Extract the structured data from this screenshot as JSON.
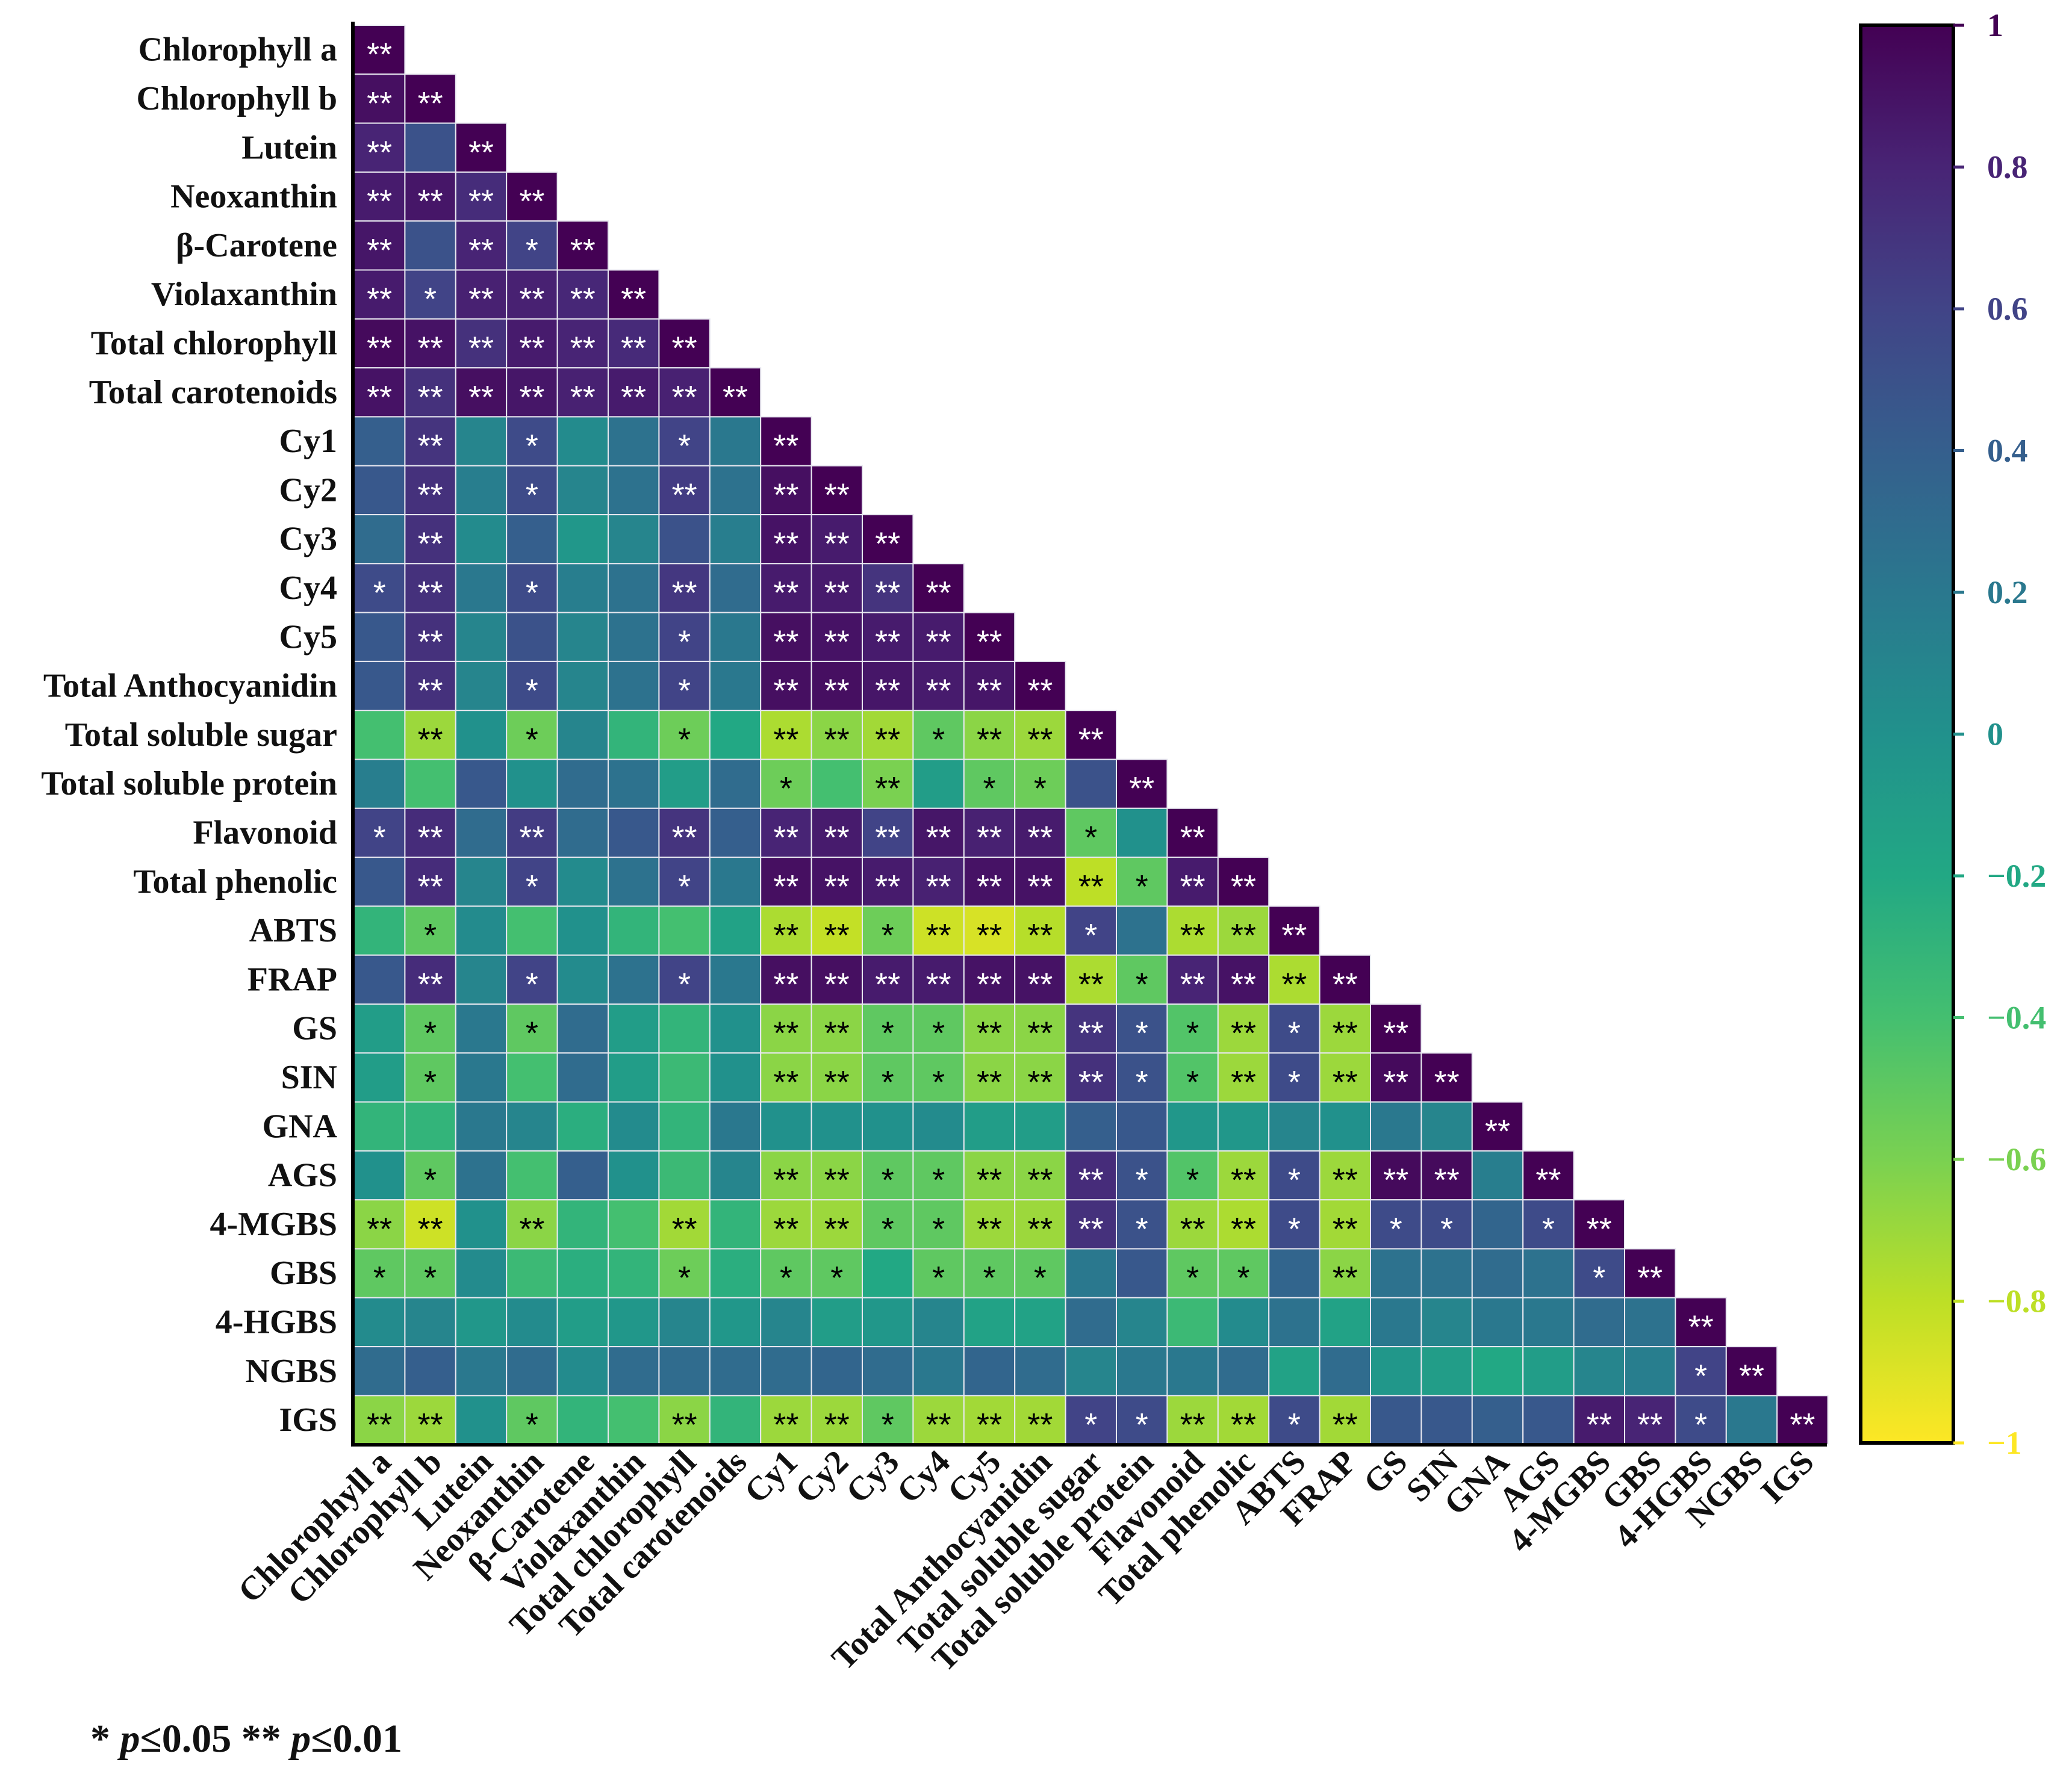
{
  "chart_data": {
    "type": "heatmap",
    "title": "",
    "variables": [
      "Chlorophyll a",
      "Chlorophyll b",
      "Lutein",
      "Neoxanthin",
      "β-Carotene",
      "Violaxanthin",
      "Total chlorophyll",
      "Total carotenoids",
      "Cy1",
      "Cy2",
      "Cy3",
      "Cy4",
      "Cy5",
      "Total Anthocyanidin",
      "Total soluble sugar",
      "Total soluble protein",
      "Flavonoid",
      "Total phenolic",
      "ABTS",
      "FRAP",
      "GS",
      "SIN",
      "GNA",
      "AGS",
      "4-MGBS",
      "GBS",
      "4-HGBS",
      "NGBS",
      "IGS"
    ],
    "layout": "lower-triangle",
    "values": [
      [
        1
      ],
      [
        0.92,
        1
      ],
      [
        0.8,
        0.5,
        1
      ],
      [
        0.85,
        0.88,
        0.75,
        1
      ],
      [
        0.88,
        0.5,
        0.8,
        0.6,
        1
      ],
      [
        0.85,
        0.6,
        0.82,
        0.82,
        0.78,
        1
      ],
      [
        0.95,
        0.9,
        0.72,
        0.85,
        0.8,
        0.76,
        1
      ],
      [
        0.9,
        0.72,
        0.92,
        0.88,
        0.82,
        0.85,
        0.82,
        1
      ],
      [
        0.4,
        0.7,
        0.1,
        0.55,
        0.05,
        0.25,
        0.6,
        0.2,
        1
      ],
      [
        0.45,
        0.72,
        0.15,
        0.55,
        0.1,
        0.25,
        0.65,
        0.25,
        0.92,
        1
      ],
      [
        0.3,
        0.72,
        0.05,
        0.4,
        -0.05,
        0.1,
        0.5,
        0.15,
        0.9,
        0.85,
        1
      ],
      [
        0.55,
        0.72,
        0.2,
        0.55,
        0.15,
        0.25,
        0.68,
        0.3,
        0.85,
        0.85,
        0.7,
        1
      ],
      [
        0.45,
        0.72,
        0.1,
        0.5,
        0.1,
        0.25,
        0.6,
        0.2,
        0.92,
        0.9,
        0.85,
        0.85,
        1
      ],
      [
        0.45,
        0.72,
        0.1,
        0.55,
        0.1,
        0.25,
        0.6,
        0.2,
        0.92,
        0.92,
        0.88,
        0.85,
        0.88,
        1
      ],
      [
        -0.4,
        -0.7,
        0.0,
        -0.55,
        0.1,
        -0.3,
        -0.55,
        -0.2,
        -0.75,
        -0.65,
        -0.72,
        -0.5,
        -0.65,
        -0.7,
        1
      ],
      [
        0.15,
        -0.4,
        0.45,
        0.0,
        0.3,
        0.25,
        -0.1,
        0.3,
        -0.55,
        -0.4,
        -0.6,
        -0.1,
        -0.5,
        -0.55,
        0.5,
        1
      ],
      [
        0.6,
        0.75,
        0.3,
        0.65,
        0.3,
        0.45,
        0.7,
        0.4,
        0.8,
        0.85,
        0.6,
        0.88,
        0.82,
        0.85,
        -0.5,
        0.0,
        1
      ],
      [
        0.45,
        0.75,
        0.1,
        0.6,
        0.05,
        0.25,
        0.6,
        0.2,
        0.92,
        0.9,
        0.85,
        0.82,
        0.9,
        0.9,
        -0.8,
        -0.5,
        0.85,
        1
      ],
      [
        -0.3,
        -0.5,
        0.05,
        -0.4,
        0.0,
        -0.3,
        -0.4,
        -0.15,
        -0.75,
        -0.82,
        -0.55,
        -0.85,
        -0.88,
        -0.78,
        0.6,
        0.25,
        -0.75,
        -0.7,
        1
      ],
      [
        0.45,
        0.75,
        0.1,
        0.6,
        0.05,
        0.25,
        0.6,
        0.2,
        0.92,
        0.92,
        0.85,
        0.85,
        0.9,
        0.9,
        -0.75,
        -0.5,
        0.8,
        0.9,
        -0.75,
        1
      ],
      [
        -0.1,
        -0.5,
        0.2,
        -0.5,
        0.3,
        -0.1,
        -0.3,
        0.0,
        -0.65,
        -0.65,
        -0.5,
        -0.5,
        -0.65,
        -0.65,
        0.7,
        0.5,
        -0.45,
        -0.7,
        0.55,
        -0.7,
        1
      ],
      [
        -0.1,
        -0.5,
        0.2,
        -0.4,
        0.3,
        -0.1,
        -0.35,
        0.0,
        -0.65,
        -0.65,
        -0.5,
        -0.5,
        -0.65,
        -0.65,
        0.72,
        0.5,
        -0.45,
        -0.7,
        0.55,
        -0.7,
        0.95,
        1
      ],
      [
        -0.3,
        -0.3,
        0.2,
        0.1,
        -0.25,
        0.05,
        -0.3,
        0.2,
        0.0,
        0.0,
        0.0,
        0.05,
        -0.1,
        -0.1,
        0.4,
        0.45,
        -0.05,
        -0.05,
        0.1,
        0.0,
        0.2,
        0.1,
        1
      ],
      [
        0.0,
        -0.5,
        0.25,
        -0.4,
        0.4,
        0.0,
        -0.35,
        0.1,
        -0.65,
        -0.65,
        -0.5,
        -0.5,
        -0.65,
        -0.65,
        0.75,
        0.5,
        -0.45,
        -0.7,
        0.55,
        -0.7,
        0.95,
        0.95,
        0.15,
        1
      ],
      [
        -0.65,
        -0.85,
        0.0,
        -0.65,
        -0.3,
        -0.4,
        -0.72,
        -0.3,
        -0.7,
        -0.7,
        -0.5,
        -0.5,
        -0.7,
        -0.7,
        0.72,
        0.5,
        -0.7,
        -0.75,
        0.55,
        -0.72,
        0.55,
        0.55,
        0.35,
        0.55,
        1
      ],
      [
        -0.5,
        -0.5,
        0.05,
        -0.35,
        -0.25,
        -0.3,
        -0.55,
        -0.25,
        -0.5,
        -0.5,
        -0.2,
        -0.5,
        -0.5,
        -0.5,
        0.2,
        0.45,
        -0.5,
        -0.5,
        0.35,
        -0.65,
        0.25,
        0.25,
        0.3,
        0.25,
        0.55,
        1
      ],
      [
        0.05,
        0.1,
        -0.05,
        0.05,
        -0.1,
        -0.05,
        0.1,
        -0.05,
        0.1,
        -0.1,
        -0.05,
        0.1,
        -0.15,
        -0.15,
        0.3,
        0.1,
        -0.35,
        0.05,
        0.25,
        -0.15,
        0.2,
        0.1,
        0.2,
        0.2,
        0.3,
        0.25,
        1
      ],
      [
        0.3,
        0.4,
        0.2,
        0.3,
        0.05,
        0.3,
        0.3,
        0.3,
        0.3,
        0.35,
        0.3,
        0.2,
        0.35,
        0.3,
        0.1,
        0.2,
        0.2,
        0.3,
        -0.15,
        0.3,
        -0.05,
        -0.1,
        -0.2,
        -0.1,
        0.1,
        0.15,
        0.6,
        1
      ],
      [
        -0.65,
        -0.7,
        0.0,
        -0.5,
        -0.3,
        -0.4,
        -0.65,
        -0.3,
        -0.7,
        -0.7,
        -0.5,
        -0.7,
        -0.72,
        -0.72,
        0.6,
        0.55,
        -0.7,
        -0.72,
        0.55,
        -0.72,
        0.45,
        0.45,
        0.4,
        0.45,
        0.85,
        0.8,
        0.55,
        0.2,
        1
      ]
    ],
    "significance": [
      [
        "**"
      ],
      [
        "**",
        "**"
      ],
      [
        "**",
        "",
        "**"
      ],
      [
        "**",
        "**",
        "**",
        "**"
      ],
      [
        "**",
        "",
        "**",
        "*",
        "**"
      ],
      [
        "**",
        "*",
        "**",
        "**",
        "**",
        "**"
      ],
      [
        "**",
        "**",
        "**",
        "**",
        "**",
        "**",
        "**"
      ],
      [
        "**",
        "**",
        "**",
        "**",
        "**",
        "**",
        "**",
        "**"
      ],
      [
        "",
        "**",
        "",
        "*",
        "",
        "",
        "*",
        "",
        "**"
      ],
      [
        "",
        "**",
        "",
        "*",
        "",
        "",
        "**",
        "",
        "**",
        "**"
      ],
      [
        "",
        "**",
        "",
        "",
        "",
        "",
        "",
        "",
        "**",
        "**",
        "**"
      ],
      [
        "*",
        "**",
        "",
        "*",
        "",
        "",
        "**",
        "",
        "**",
        "**",
        "**",
        "**"
      ],
      [
        "",
        "**",
        "",
        "",
        "",
        "",
        "*",
        "",
        "**",
        "**",
        "**",
        "**",
        "**"
      ],
      [
        "",
        "**",
        "",
        "*",
        "",
        "",
        "*",
        "",
        "**",
        "**",
        "**",
        "**",
        "**",
        "**"
      ],
      [
        "",
        "**",
        "",
        "*",
        "",
        "",
        "*",
        "",
        "**",
        "**",
        "**",
        "*",
        "**",
        "**",
        "**"
      ],
      [
        "",
        "",
        "",
        "",
        "",
        "",
        "",
        "",
        "*",
        "",
        "**",
        "",
        "*",
        "*",
        "",
        "**"
      ],
      [
        "*",
        "**",
        "",
        "**",
        "",
        "",
        "**",
        "",
        "**",
        "**",
        "**",
        "**",
        "**",
        "**",
        "*",
        "",
        "**"
      ],
      [
        "",
        "**",
        "",
        "*",
        "",
        "",
        "*",
        "",
        "**",
        "**",
        "**",
        "**",
        "**",
        "**",
        "**",
        "*",
        "**",
        "**"
      ],
      [
        "",
        "*",
        "",
        "",
        "",
        "",
        "",
        "",
        "**",
        "**",
        "*",
        "**",
        "**",
        "**",
        "*",
        "",
        "**",
        "**",
        "**"
      ],
      [
        "",
        "**",
        "",
        "*",
        "",
        "",
        "*",
        "",
        "**",
        "**",
        "**",
        "**",
        "**",
        "**",
        "**",
        "*",
        "**",
        "**",
        "**",
        "**"
      ],
      [
        "",
        "*",
        "",
        "*",
        "",
        "",
        "",
        "",
        "**",
        "**",
        "*",
        "*",
        "**",
        "**",
        "**",
        "*",
        "*",
        "**",
        "*",
        "**",
        "**"
      ],
      [
        "",
        "*",
        "",
        "",
        "",
        "",
        "",
        "",
        "**",
        "**",
        "*",
        "*",
        "**",
        "**",
        "**",
        "*",
        "*",
        "**",
        "*",
        "**",
        "**",
        "**"
      ],
      [
        "",
        "",
        "",
        "",
        "",
        "",
        "",
        "",
        "",
        "",
        "",
        "",
        "",
        "",
        "",
        "",
        "",
        "",
        "",
        "",
        "",
        "",
        "**"
      ],
      [
        "",
        "*",
        "",
        "",
        "",
        "",
        "",
        "",
        "**",
        "**",
        "*",
        "*",
        "**",
        "**",
        "**",
        "*",
        "*",
        "**",
        "*",
        "**",
        "**",
        "**",
        "",
        "**"
      ],
      [
        "**",
        "**",
        "",
        "**",
        "",
        "",
        "**",
        "",
        "**",
        "**",
        "*",
        "*",
        "**",
        "**",
        "**",
        "*",
        "**",
        "**",
        "*",
        "**",
        "*",
        "*",
        "",
        "*",
        "**"
      ],
      [
        "*",
        "*",
        "",
        "",
        "",
        "",
        "*",
        "",
        "*",
        "*",
        "",
        "*",
        "*",
        "*",
        "",
        "",
        "*",
        "*",
        "",
        "**",
        "",
        "",
        "",
        "",
        "*",
        "**"
      ],
      [
        "",
        "",
        "",
        "",
        "",
        "",
        "",
        "",
        "",
        "",
        "",
        "",
        "",
        "",
        "",
        "",
        "",
        "",
        "",
        "",
        "",
        "",
        "",
        "",
        "",
        "",
        "**"
      ],
      [
        "",
        "",
        "",
        "",
        "",
        "",
        "",
        "",
        "",
        "",
        "",
        "",
        "",
        "",
        "",
        "",
        "",
        "",
        "",
        "",
        "",
        "",
        "",
        "",
        "",
        "",
        "*",
        "**"
      ],
      [
        "**",
        "**",
        "",
        "*",
        "",
        "",
        "**",
        "",
        "**",
        "**",
        "*",
        "**",
        "**",
        "**",
        "*",
        "*",
        "**",
        "**",
        "*",
        "**",
        "",
        "",
        "",
        "",
        "**",
        "**",
        "*",
        "",
        "**"
      ]
    ],
    "colorbar": {
      "range": [
        -1,
        1
      ],
      "ticks": [
        "1",
        "0.8",
        "0.6",
        "0.4",
        "0.2",
        "0",
        "−0.2",
        "−0.4",
        "−0.6",
        "−0.8",
        "−1"
      ],
      "tick_values": [
        1,
        0.8,
        0.6,
        0.4,
        0.2,
        0,
        -0.2,
        -0.4,
        -0.6,
        -0.8,
        -1
      ],
      "colormap": "viridis (reversed: 1 = #440154, -1 = #fde725)",
      "placement": "right"
    },
    "footnote": {
      "star1": "*",
      "p1": "p",
      "cond1": "≤0.05",
      "star2": "**",
      "p2": "p",
      "cond2": "≤0.01"
    }
  }
}
